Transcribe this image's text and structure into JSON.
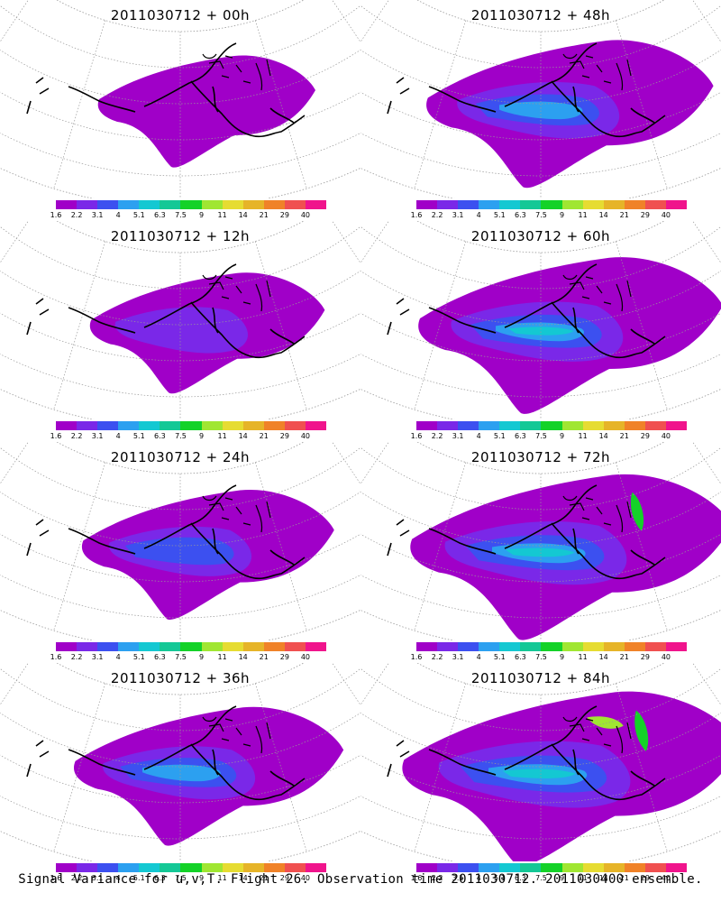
{
  "footer": "Signal Variance for u,v,T. Flight 26. Observation time 2011030712. 2011030400 ensemble.",
  "colorbar": {
    "ticks": [
      "1.6",
      "2.2",
      "3.1",
      "4",
      "5.1",
      "6.3",
      "7.5",
      "9",
      "11",
      "14",
      "21",
      "29",
      "40"
    ],
    "colors": [
      "#a000c8",
      "#7a28e8",
      "#3c50f0",
      "#2ca0f0",
      "#14c8d2",
      "#14c896",
      "#14d228",
      "#a0e632",
      "#e6dc32",
      "#e6b428",
      "#f08228",
      "#f05050",
      "#f0148c"
    ]
  },
  "panels": [
    {
      "title": "2011030712 + 00h",
      "level": 0
    },
    {
      "title": "2011030712 + 48h",
      "level": 4
    },
    {
      "title": "2011030712 + 12h",
      "level": 1
    },
    {
      "title": "2011030712 + 60h",
      "level": 5
    },
    {
      "title": "2011030712 + 24h",
      "level": 2
    },
    {
      "title": "2011030712 + 72h",
      "level": 6
    },
    {
      "title": "2011030712 + 36h",
      "level": 3
    },
    {
      "title": "2011030712 + 84h",
      "level": 7
    }
  ]
}
